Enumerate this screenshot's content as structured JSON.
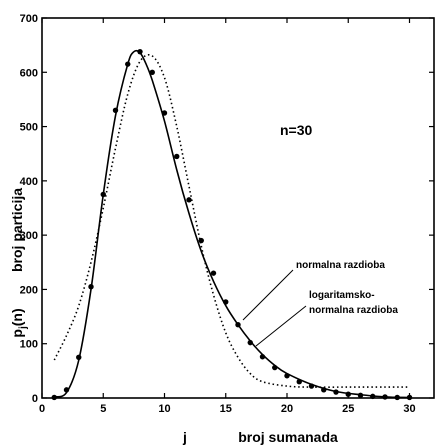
{
  "chart_data": {
    "type": "line",
    "title": "",
    "xlabel": "broj sumanada",
    "xlabel_var": "j",
    "ylabel": "broj particija",
    "ylabel_var": "p",
    "ylabel_var_sub": "j",
    "ylabel_var_suffix": "(n)",
    "xlim": [
      0,
      32
    ],
    "ylim": [
      0,
      700
    ],
    "xticks": [
      0,
      5,
      10,
      15,
      20,
      25,
      30
    ],
    "yticks": [
      0,
      100,
      200,
      300,
      400,
      500,
      600,
      700
    ],
    "annotation_n": "n=30",
    "series": [
      {
        "name": "normalna razdioba",
        "style": "solid",
        "x": [
          1,
          2,
          3,
          4,
          5,
          6,
          7,
          7.5,
          8,
          8.5,
          9,
          10,
          11,
          12,
          13,
          14,
          15,
          16,
          17,
          18,
          19,
          20,
          22,
          24,
          26,
          28,
          30
        ],
        "y": [
          2,
          10,
          70,
          200,
          375,
          520,
          615,
          638,
          636,
          615,
          585,
          510,
          420,
          340,
          270,
          215,
          170,
          135,
          105,
          80,
          60,
          45,
          25,
          12,
          6,
          2,
          1
        ]
      },
      {
        "name": "logaritamsko-normalna razdioba",
        "style": "dotted",
        "x": [
          1,
          2,
          3,
          4,
          5,
          6,
          7,
          8,
          9,
          10,
          11,
          12,
          13,
          14,
          15,
          16,
          17,
          18,
          20,
          22,
          25,
          28,
          30
        ],
        "y": [
          70,
          115,
          170,
          250,
          350,
          460,
          560,
          620,
          630,
          590,
          500,
          390,
          280,
          190,
          120,
          75,
          45,
          30,
          22,
          20,
          20,
          20,
          20
        ]
      },
      {
        "name": "",
        "style": "markers",
        "x": [
          1,
          2,
          3,
          4,
          5,
          6,
          7,
          8,
          9,
          10,
          11,
          12,
          13,
          14,
          15,
          16,
          17,
          18,
          19,
          20,
          21,
          22,
          23,
          24,
          25,
          26,
          27,
          28,
          29,
          30
        ],
        "y": [
          1,
          15,
          75,
          205,
          375,
          530,
          615,
          638,
          600,
          525,
          445,
          365,
          290,
          230,
          177,
          135,
          102,
          76,
          56,
          41,
          30,
          22,
          15,
          11,
          7,
          5,
          3,
          2,
          1,
          1
        ]
      }
    ],
    "annotations": [
      {
        "text": "normalna razdioba"
      },
      {
        "text_lines": [
          "logaritamsko-",
          "normalna razdioba"
        ]
      }
    ]
  }
}
